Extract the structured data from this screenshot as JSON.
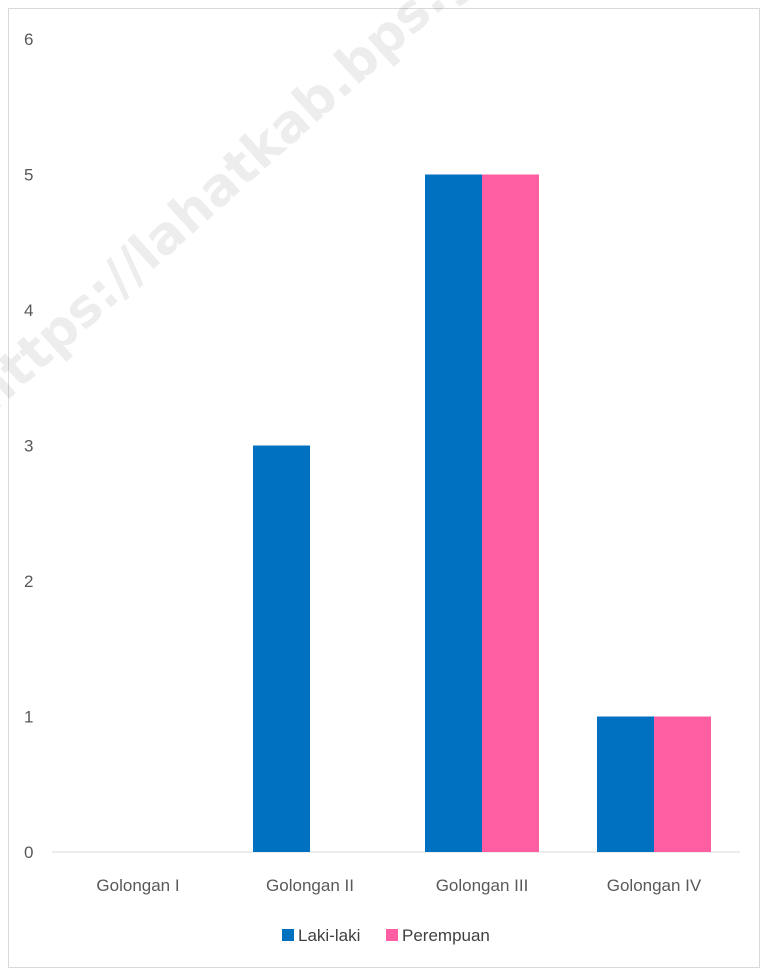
{
  "chart_data": {
    "type": "bar",
    "categories": [
      "Golongan I",
      "Golongan II",
      "Golongan III",
      "Golongan IV"
    ],
    "series": [
      {
        "name": "Laki-laki",
        "values": [
          0,
          3,
          5,
          1
        ],
        "color": "#0070c0"
      },
      {
        "name": "Perempuan",
        "values": [
          0,
          0,
          5,
          1
        ],
        "color": "#ff5fa2"
      }
    ],
    "ylim": [
      0,
      6
    ],
    "yticks": [
      "0",
      "1",
      "2",
      "3",
      "4",
      "5",
      "6"
    ],
    "grid": false,
    "legend_position": "bottom"
  },
  "watermark": "https://lahatkab.bps.go.id"
}
